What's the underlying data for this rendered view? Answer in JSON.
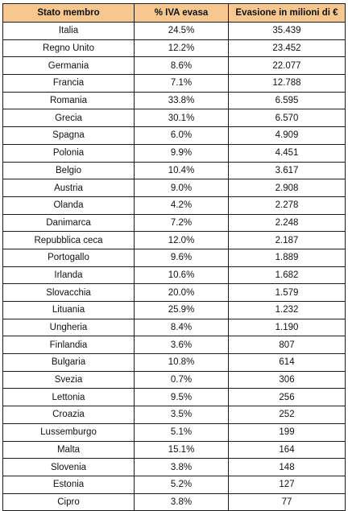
{
  "table": {
    "headers": [
      "Stato membro",
      "% IVA evasa",
      "Evasione in milioni di €"
    ],
    "header_color": "#f6c78f",
    "rows": [
      [
        "Italia",
        "24.5%",
        "35.439"
      ],
      [
        "Regno Unito",
        "12.2%",
        "23.452"
      ],
      [
        "Germania",
        "8.6%",
        "22.077"
      ],
      [
        "Francia",
        "7.1%",
        "12.788"
      ],
      [
        "Romania",
        "33.8%",
        "6.595"
      ],
      [
        "Grecia",
        "30.1%",
        "6.570"
      ],
      [
        "Spagna",
        "6.0%",
        "4.909"
      ],
      [
        "Polonia",
        "9.9%",
        "4.451"
      ],
      [
        "Belgio",
        "10.4%",
        "3.617"
      ],
      [
        "Austria",
        "9.0%",
        "2.908"
      ],
      [
        "Olanda",
        "4.2%",
        "2.278"
      ],
      [
        "Danimarca",
        "7.2%",
        "2.248"
      ],
      [
        "Repubblica ceca",
        "12.0%",
        "2.187"
      ],
      [
        "Portogallo",
        "9.6%",
        "1.889"
      ],
      [
        "Irlanda",
        "10.6%",
        "1.682"
      ],
      [
        "Slovacchia",
        "20.0%",
        "1.579"
      ],
      [
        "Lituania",
        "25.9%",
        "1.232"
      ],
      [
        "Ungheria",
        "8.4%",
        "1.190"
      ],
      [
        "Finlandia",
        "3.6%",
        "807"
      ],
      [
        "Bulgaria",
        "10.8%",
        "614"
      ],
      [
        "Svezia",
        "0.7%",
        "306"
      ],
      [
        "Lettonia",
        "9.5%",
        "256"
      ],
      [
        "Croazia",
        "3.5%",
        "252"
      ],
      [
        "Lussemburgo",
        "5.1%",
        "199"
      ],
      [
        "Malta",
        "15.1%",
        "164"
      ],
      [
        "Slovenia",
        "3.8%",
        "148"
      ],
      [
        "Estonia",
        "5.2%",
        "127"
      ],
      [
        "Cipro",
        "3.8%",
        "77"
      ]
    ]
  }
}
